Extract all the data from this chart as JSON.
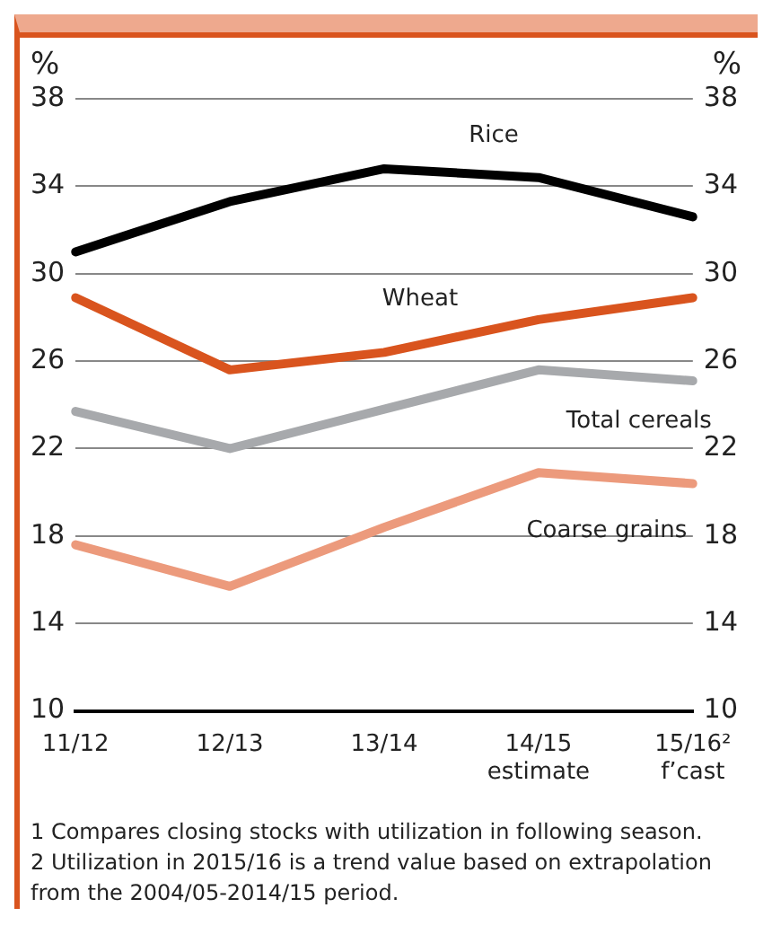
{
  "chart_data": {
    "type": "line",
    "ylabel": "%",
    "y2label": "%",
    "categories": [
      "11/12",
      "12/13",
      "13/14",
      "14/15\nestimate",
      "15/16²\nf’cast"
    ],
    "series": [
      {
        "name": "Rice",
        "color": "#000000",
        "values": [
          31.0,
          33.3,
          34.8,
          34.4,
          32.6
        ]
      },
      {
        "name": "Wheat",
        "color": "#d9541e",
        "values": [
          28.9,
          25.6,
          26.4,
          27.9,
          28.9
        ]
      },
      {
        "name": "Total cereals",
        "color": "#a7a9ac",
        "values": [
          23.7,
          22.0,
          23.8,
          25.6,
          25.1
        ]
      },
      {
        "name": "Coarse grains",
        "color": "#ec9a7c",
        "values": [
          17.6,
          15.7,
          18.4,
          20.9,
          20.4
        ]
      }
    ],
    "ylim": [
      10,
      38
    ],
    "yticks": [
      10,
      14,
      18,
      22,
      26,
      30,
      34,
      38
    ],
    "y2lim": [
      10,
      38
    ],
    "y2ticks": [
      10,
      14,
      18,
      22,
      26,
      30,
      34,
      38
    ],
    "grid": "y",
    "legend": false,
    "marker": "none",
    "line_style": "solid",
    "annotations": [
      "1 Compares closing stocks with utilization in following season.",
      "2 Utilization in 2015/16 is a trend value based on extrapolation from the 2004/05-2014/15 period."
    ]
  }
}
